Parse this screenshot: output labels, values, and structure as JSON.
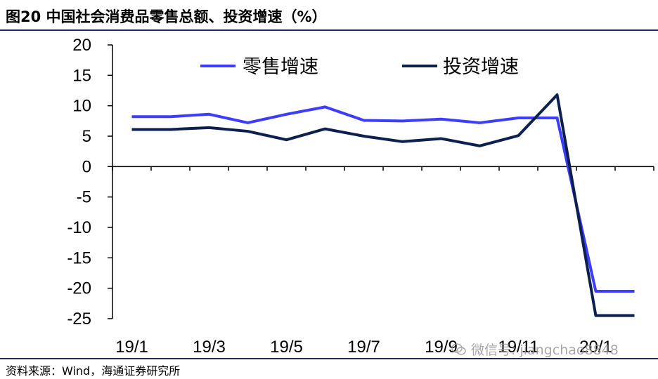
{
  "header": {
    "title": "图20 中国社会消费品零售总额、投资增速（%）"
  },
  "footer": {
    "source": "资料来源：Wind，海通证券研究所"
  },
  "watermark": {
    "text": "微信号: jiangchao8848",
    "icon": "wechat-icon"
  },
  "colors": {
    "retail": "#3d3dff",
    "investment": "#0d1f4f",
    "axis": "#000000",
    "header_rule": "#1a2a5a"
  },
  "chart_data": {
    "type": "line",
    "title": "",
    "xlabel": "",
    "ylabel": "",
    "ylim": [
      -25,
      20
    ],
    "yticks": [
      "20",
      "15",
      "10",
      "5",
      "0",
      "-5",
      "-10",
      "-15",
      "-20",
      "-25"
    ],
    "x_tick_labels": [
      "19/1",
      "19/3",
      "19/5",
      "19/7",
      "19/9",
      "19/11",
      "20/1"
    ],
    "x_tick_positions": [
      0,
      2,
      4,
      6,
      8,
      10,
      12
    ],
    "grid": false,
    "legend_position": "top",
    "series": [
      {
        "name": "零售增速",
        "color": "#3d3dff",
        "x": [
          0,
          1,
          2,
          3,
          4,
          5,
          6,
          7,
          8,
          9,
          10,
          11,
          12,
          13
        ],
        "values": [
          8.2,
          8.2,
          8.6,
          7.2,
          8.6,
          9.8,
          7.6,
          7.5,
          7.8,
          7.2,
          8.0,
          8.0,
          -20.5,
          -20.5
        ]
      },
      {
        "name": "投资增速",
        "color": "#0d1f4f",
        "x": [
          0,
          1,
          2,
          3,
          4,
          5,
          6,
          7,
          8,
          9,
          10,
          11,
          12,
          13
        ],
        "values": [
          6.1,
          6.1,
          6.4,
          5.8,
          4.4,
          6.2,
          5.0,
          4.1,
          4.6,
          3.4,
          5.1,
          11.8,
          -24.5,
          -24.5
        ]
      }
    ]
  }
}
